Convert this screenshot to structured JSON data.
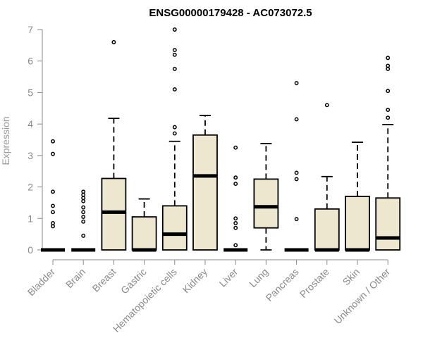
{
  "chart_data": {
    "type": "boxplot",
    "title": "ENSG00000179428 - AC073072.5",
    "ylabel": "Expression",
    "xlabel": "",
    "ylim": [
      0,
      7
    ],
    "yticks": [
      0,
      1,
      2,
      3,
      4,
      5,
      6,
      7
    ],
    "box_fill": "#ede7d0",
    "box_stroke": "#000000",
    "categories": [
      "Bladder",
      "Brain",
      "Breast",
      "Gastric",
      "Hematopoietic cells",
      "Kidney",
      "Liver",
      "Lung",
      "Pancreas",
      "Prostate",
      "Skin",
      "Unknown / Other"
    ],
    "boxes": [
      {
        "q1": 0,
        "median": 0,
        "q3": 0,
        "whisker_low": 0,
        "whisker_high": 0,
        "outliers": [
          0.75,
          0.85,
          1.2,
          1.4,
          1.85,
          3.05,
          3.45
        ]
      },
      {
        "q1": 0,
        "median": 0,
        "q3": 0,
        "whisker_low": 0,
        "whisker_high": 0,
        "outliers": [
          0.45,
          0.9,
          1.05,
          1.2,
          1.35,
          1.55,
          1.65,
          1.75,
          1.85
        ]
      },
      {
        "q1": 0,
        "median": 1.2,
        "q3": 2.27,
        "whisker_low": 0,
        "whisker_high": 4.18,
        "outliers": [
          6.6
        ]
      },
      {
        "q1": 0,
        "median": 0,
        "q3": 1.05,
        "whisker_low": 0,
        "whisker_high": 1.62,
        "outliers": []
      },
      {
        "q1": 0,
        "median": 0.5,
        "q3": 1.4,
        "whisker_low": 0,
        "whisker_high": 3.45,
        "outliers": [
          3.7,
          3.9,
          5.1,
          5.75,
          6.2,
          6.35,
          7.0
        ]
      },
      {
        "q1": 0,
        "median": 2.35,
        "q3": 3.65,
        "whisker_low": 0,
        "whisker_high": 4.27,
        "outliers": []
      },
      {
        "q1": 0,
        "median": 0,
        "q3": 0,
        "whisker_low": 0,
        "whisker_high": 0,
        "outliers": [
          0.15,
          0.7,
          0.85,
          1.0,
          2.1,
          2.3,
          3.25
        ]
      },
      {
        "q1": 0.7,
        "median": 1.37,
        "q3": 2.25,
        "whisker_low": 0,
        "whisker_high": 3.38,
        "outliers": []
      },
      {
        "q1": 0,
        "median": 0,
        "q3": 0,
        "whisker_low": 0,
        "whisker_high": 0,
        "outliers": [
          0.98,
          2.25,
          2.45,
          4.15,
          5.3
        ]
      },
      {
        "q1": 0,
        "median": 0,
        "q3": 1.3,
        "whisker_low": 0,
        "whisker_high": 2.33,
        "outliers": [
          4.6
        ]
      },
      {
        "q1": 0,
        "median": 0,
        "q3": 1.7,
        "whisker_low": 0,
        "whisker_high": 3.42,
        "outliers": []
      },
      {
        "q1": 0,
        "median": 0.38,
        "q3": 1.65,
        "whisker_low": 0,
        "whisker_high": 3.98,
        "outliers": [
          4.2,
          4.45,
          5.05,
          5.75,
          5.85,
          6.1
        ]
      }
    ]
  }
}
